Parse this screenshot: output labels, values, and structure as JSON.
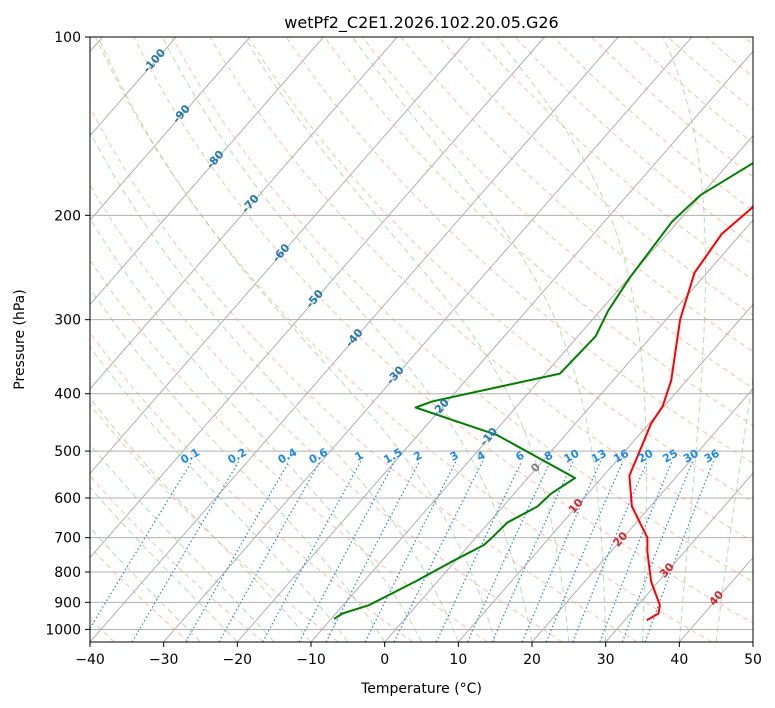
{
  "chart_data": {
    "type": "line",
    "title": "wetPf2_C2E1.2026.102.20.05.G26",
    "xlabel": "Temperature (°C)",
    "ylabel": "Pressure (hPa)",
    "xlim": [
      -40,
      50
    ],
    "ylim": [
      1050,
      100
    ],
    "x_ticks": [
      -40,
      -30,
      -20,
      -10,
      0,
      10,
      20,
      30,
      40,
      50
    ],
    "y_ticks": [
      1000,
      900,
      800,
      700,
      600,
      500,
      400,
      300,
      200,
      100
    ],
    "series": [
      {
        "name": "temperature",
        "color": "#ff0000",
        "points": [
          [
            33.0,
            965
          ],
          [
            33.8,
            940
          ],
          [
            33.0,
            910
          ],
          [
            29.0,
            830
          ],
          [
            25.0,
            740
          ],
          [
            23.3,
            700
          ],
          [
            17.5,
            620
          ],
          [
            13.5,
            550
          ],
          [
            12.0,
            500
          ],
          [
            10.3,
            450
          ],
          [
            9.8,
            420
          ],
          [
            7.9,
            380
          ],
          [
            1.9,
            300
          ],
          [
            -1.7,
            250
          ],
          [
            -2.6,
            215
          ],
          [
            -1.6,
            195
          ],
          [
            -2.0,
            175
          ],
          [
            -1.0,
            165
          ],
          [
            4.0,
            145
          ],
          [
            9.5,
            130
          ],
          [
            12.5,
            118
          ],
          [
            14.0,
            110
          ],
          [
            15.5,
            100
          ]
        ]
      },
      {
        "name": "dewpoint",
        "color": "#008000",
        "points": [
          [
            -9.6,
            960
          ],
          [
            -9.1,
            940
          ],
          [
            -6.5,
            910
          ],
          [
            -3.0,
            830
          ],
          [
            -0.5,
            770
          ],
          [
            2.0,
            720
          ],
          [
            2.2,
            700
          ],
          [
            2.5,
            660
          ],
          [
            4.7,
            620
          ],
          [
            5.0,
            590
          ],
          [
            6.4,
            555
          ],
          [
            -9.2,
            470
          ],
          [
            -23.6,
            422
          ],
          [
            -22.0,
            412
          ],
          [
            -8.0,
            370
          ],
          [
            -7.6,
            320
          ],
          [
            -8.9,
            290
          ],
          [
            -9.9,
            255
          ],
          [
            -10.8,
            205
          ],
          [
            -10.1,
            185
          ],
          [
            -6.2,
            160
          ],
          [
            -7.6,
            150
          ],
          [
            -9.3,
            130
          ],
          [
            -5.5,
            110
          ],
          [
            0.0,
            100
          ]
        ]
      }
    ],
    "dry_adiabats": [
      -40,
      -30,
      -20,
      -10,
      0,
      10,
      20,
      30,
      40,
      50,
      60,
      70,
      80,
      90,
      100,
      110,
      120,
      130,
      140,
      150,
      160,
      170,
      180,
      190,
      200,
      210,
      220,
      230,
      240,
      250,
      260,
      270,
      280,
      290,
      300,
      310,
      320,
      330,
      340,
      350,
      360,
      370,
      380
    ],
    "moist_adiabats": [
      -25,
      -20,
      -15,
      -10,
      -5,
      0,
      5,
      10,
      15,
      20,
      25,
      30,
      35,
      40,
      45
    ],
    "isotherm_labels": [
      {
        "text": "-100",
        "t": -100,
        "p": 109
      },
      {
        "text": "-90",
        "t": -90,
        "p": 134
      },
      {
        "text": "-80",
        "t": -80,
        "p": 160
      },
      {
        "text": "-70",
        "t": -70,
        "p": 190
      },
      {
        "text": "-60",
        "t": -60,
        "p": 230
      },
      {
        "text": "-50",
        "t": -50,
        "p": 275
      },
      {
        "text": "-40",
        "t": -40,
        "p": 320
      },
      {
        "text": "-30",
        "t": -30,
        "p": 370
      },
      {
        "text": "-20",
        "t": -20,
        "p": 420
      },
      {
        "text": "-10",
        "t": -10,
        "p": 470
      },
      {
        "text": "0",
        "t": 0,
        "p": 530
      },
      {
        "text": "10",
        "t": 10,
        "p": 615
      },
      {
        "text": "20",
        "t": 20,
        "p": 700
      },
      {
        "text": "30",
        "t": 30,
        "p": 790
      },
      {
        "text": "40",
        "t": 40,
        "p": 880
      }
    ],
    "mixing_ratio_labels": [
      "0.1",
      "0.2",
      "0.4",
      "0.6",
      "1",
      "1.5",
      "2",
      "3",
      "4",
      "6",
      "8",
      "10",
      "13",
      "16",
      "20",
      "25",
      "30",
      "36"
    ],
    "mixing_ratio_values": [
      0.1,
      0.2,
      0.4,
      0.6,
      1,
      1.5,
      2,
      3,
      4,
      6,
      8,
      10,
      13,
      16,
      20,
      25,
      30,
      36
    ],
    "colors": {
      "isotherm_cold": "#1f77b4",
      "isotherm_zero": "#808080",
      "isotherm_warm": "#d62728",
      "mixing_ratio": "#1e88e5",
      "dry_adiabat": "#ff9977",
      "moist_adiabat": "#88cc88",
      "grid": "#b0b0b0"
    }
  }
}
